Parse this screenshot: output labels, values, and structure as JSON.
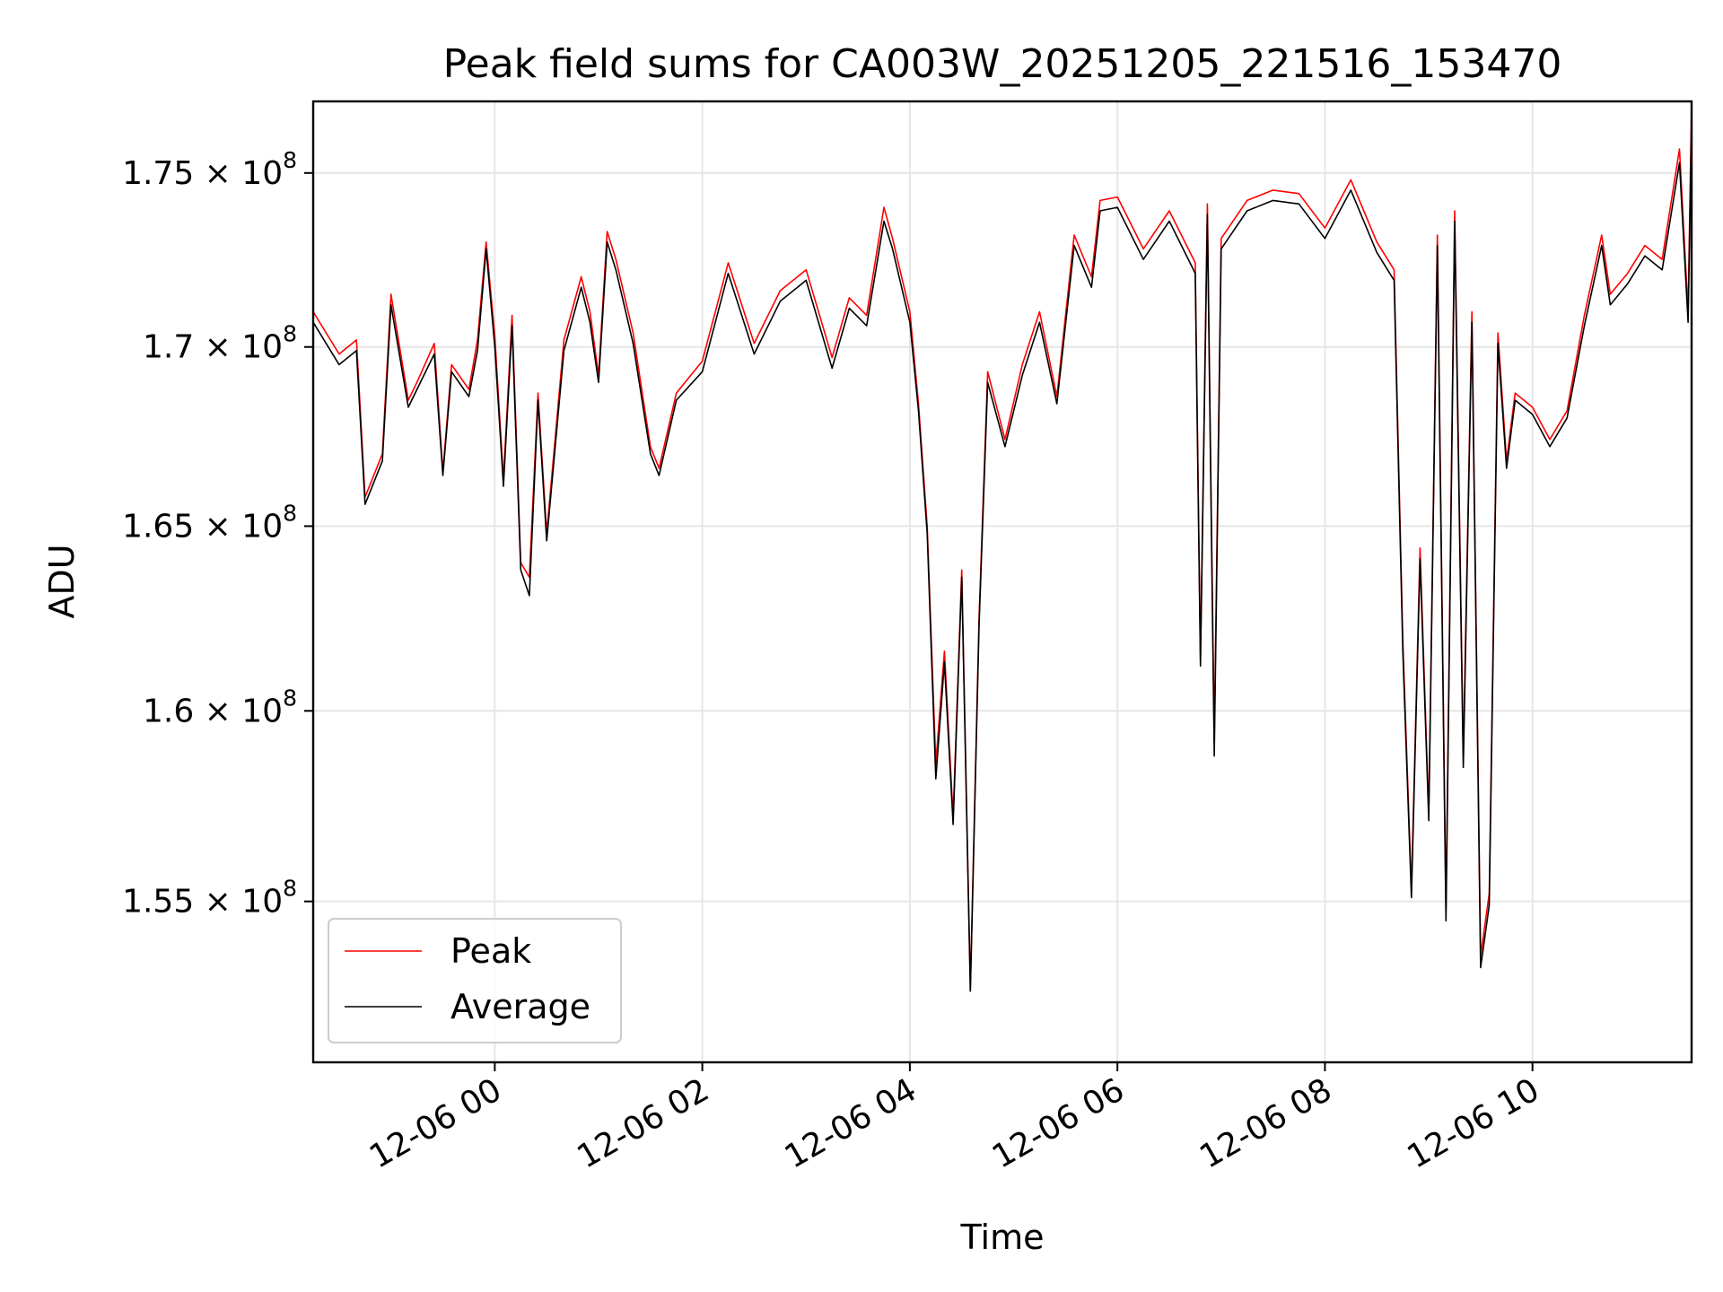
{
  "chart_data": {
    "type": "line",
    "title": "Peak field sums for CA003W_20251205_221516_153470",
    "xlabel": "Time",
    "ylabel": "ADU",
    "y_scale": "log",
    "xlim": [
      "2025-12-05 22:15",
      "2025-12-06 11:32"
    ],
    "ylim": [
      150900000,
      177100000
    ],
    "x_ticks": [
      "12-06 00",
      "12-06 02",
      "12-06 04",
      "12-06 06",
      "12-06 08",
      "12-06 10"
    ],
    "y_ticks": [
      {
        "value": 155000000,
        "label": "1.55 × 10^8",
        "mantissa": "1.55",
        "exp": "8"
      },
      {
        "value": 160000000,
        "label": "1.6 × 10^8",
        "mantissa": "1.6",
        "exp": "8"
      },
      {
        "value": 165000000,
        "label": "1.65 × 10^8",
        "mantissa": "1.65",
        "exp": "8"
      },
      {
        "value": 170000000,
        "label": "1.7 × 10^8",
        "mantissa": "1.7",
        "exp": "8"
      },
      {
        "value": 175000000,
        "label": "1.75 × 10^8",
        "mantissa": "1.75",
        "exp": "8"
      }
    ],
    "grid": true,
    "legend_position": "lower-left",
    "x": [
      "2025-12-05 22:15",
      "2025-12-05 22:30",
      "2025-12-05 22:40",
      "2025-12-05 22:45",
      "2025-12-05 22:55",
      "2025-12-05 23:00",
      "2025-12-05 23:10",
      "2025-12-05 23:15",
      "2025-12-05 23:25",
      "2025-12-05 23:30",
      "2025-12-05 23:35",
      "2025-12-05 23:45",
      "2025-12-05 23:50",
      "2025-12-05 23:55",
      "2025-12-06 00:00",
      "2025-12-06 00:05",
      "2025-12-06 00:10",
      "2025-12-06 00:15",
      "2025-12-06 00:20",
      "2025-12-06 00:25",
      "2025-12-06 00:30",
      "2025-12-06 00:40",
      "2025-12-06 00:50",
      "2025-12-06 00:55",
      "2025-12-06 01:00",
      "2025-12-06 01:05",
      "2025-12-06 01:10",
      "2025-12-06 01:20",
      "2025-12-06 01:30",
      "2025-12-06 01:35",
      "2025-12-06 01:45",
      "2025-12-06 02:00",
      "2025-12-06 02:15",
      "2025-12-06 02:30",
      "2025-12-06 02:45",
      "2025-12-06 03:00",
      "2025-12-06 03:15",
      "2025-12-06 03:25",
      "2025-12-06 03:35",
      "2025-12-06 03:45",
      "2025-12-06 03:50",
      "2025-12-06 04:00",
      "2025-12-06 04:05",
      "2025-12-06 04:10",
      "2025-12-06 04:15",
      "2025-12-06 04:20",
      "2025-12-06 04:25",
      "2025-12-06 04:30",
      "2025-12-06 04:35",
      "2025-12-06 04:40",
      "2025-12-06 04:45",
      "2025-12-06 04:55",
      "2025-12-06 05:05",
      "2025-12-06 05:15",
      "2025-12-06 05:25",
      "2025-12-06 05:35",
      "2025-12-06 05:45",
      "2025-12-06 05:50",
      "2025-12-06 06:00",
      "2025-12-06 06:15",
      "2025-12-06 06:30",
      "2025-12-06 06:45",
      "2025-12-06 06:48",
      "2025-12-06 06:52",
      "2025-12-06 06:56",
      "2025-12-06 07:00",
      "2025-12-06 07:15",
      "2025-12-06 07:30",
      "2025-12-06 07:45",
      "2025-12-06 08:00",
      "2025-12-06 08:15",
      "2025-12-06 08:30",
      "2025-12-06 08:40",
      "2025-12-06 08:45",
      "2025-12-06 08:50",
      "2025-12-06 08:55",
      "2025-12-06 09:00",
      "2025-12-06 09:05",
      "2025-12-06 09:10",
      "2025-12-06 09:15",
      "2025-12-06 09:20",
      "2025-12-06 09:25",
      "2025-12-06 09:30",
      "2025-12-06 09:35",
      "2025-12-06 09:40",
      "2025-12-06 09:45",
      "2025-12-06 09:50",
      "2025-12-06 10:00",
      "2025-12-06 10:10",
      "2025-12-06 10:20",
      "2025-12-06 10:30",
      "2025-12-06 10:40",
      "2025-12-06 10:45",
      "2025-12-06 10:55",
      "2025-12-06 11:05",
      "2025-12-06 11:15",
      "2025-12-06 11:25",
      "2025-12-06 11:30",
      "2025-12-06 11:32"
    ],
    "series": [
      {
        "name": "Peak",
        "color": "#ff0000",
        "values": [
          171000000,
          169800000,
          170200000,
          165800000,
          167000000,
          171500000,
          168500000,
          169000000,
          170100000,
          166500000,
          169500000,
          168800000,
          170200000,
          173000000,
          170300000,
          166300000,
          170900000,
          164000000,
          163600000,
          168700000,
          164800000,
          170200000,
          172000000,
          171000000,
          169200000,
          173300000,
          172500000,
          170400000,
          167200000,
          166600000,
          168700000,
          169600000,
          172400000,
          170100000,
          171600000,
          172200000,
          169700000,
          171400000,
          170900000,
          174000000,
          173100000,
          171000000,
          168400000,
          165000000,
          158600000,
          161600000,
          157200000,
          163800000,
          152800000,
          162500000,
          169300000,
          167400000,
          169500000,
          171000000,
          168600000,
          173200000,
          172000000,
          174200000,
          174300000,
          172800000,
          173900000,
          172400000,
          161400000,
          174100000,
          159200000,
          173100000,
          174200000,
          174500000,
          174400000,
          173400000,
          174800000,
          173000000,
          172200000,
          161900000,
          155300000,
          164400000,
          157300000,
          173200000,
          154800000,
          173900000,
          158800000,
          171000000,
          153600000,
          155200000,
          170400000,
          166800000,
          168700000,
          168300000,
          167400000,
          168200000,
          170900000,
          173200000,
          171500000,
          172100000,
          172900000,
          172500000,
          175700000,
          171000000,
          177100000
        ]
      },
      {
        "name": "Average",
        "color": "#000000",
        "values": [
          170700000,
          169500000,
          169900000,
          165600000,
          166800000,
          171200000,
          168300000,
          168800000,
          169800000,
          166400000,
          169300000,
          168600000,
          169900000,
          172800000,
          170000000,
          166100000,
          170600000,
          163800000,
          163100000,
          168500000,
          164600000,
          169900000,
          171700000,
          170700000,
          169000000,
          173000000,
          172200000,
          170100000,
          167000000,
          166400000,
          168500000,
          169300000,
          172100000,
          169800000,
          171300000,
          171900000,
          169400000,
          171100000,
          170600000,
          173600000,
          172800000,
          170700000,
          168200000,
          164800000,
          158200000,
          161300000,
          157000000,
          163600000,
          152700000,
          162300000,
          169000000,
          167200000,
          169200000,
          170700000,
          168400000,
          172900000,
          171700000,
          173900000,
          174000000,
          172500000,
          173600000,
          172100000,
          161200000,
          173800000,
          158800000,
          172800000,
          173900000,
          174200000,
          174100000,
          173100000,
          174500000,
          172700000,
          171900000,
          161600000,
          155100000,
          164100000,
          157100000,
          172900000,
          154500000,
          173600000,
          158500000,
          170700000,
          153300000,
          154900000,
          170100000,
          166600000,
          168500000,
          168100000,
          167200000,
          168000000,
          170600000,
          172900000,
          171200000,
          171800000,
          172600000,
          172200000,
          175300000,
          170700000,
          176600000
        ]
      }
    ]
  }
}
